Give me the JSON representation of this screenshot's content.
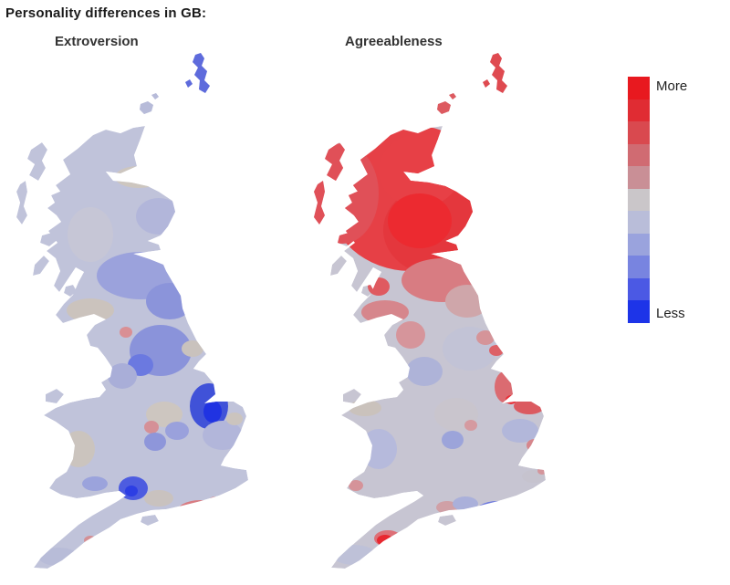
{
  "page": {
    "title": "Personality differences in GB:"
  },
  "maps": [
    {
      "id": "extroversion",
      "label": "Extroversion",
      "base_color": "#c0c3da",
      "blobs": [
        [
          215,
          28,
          20,
          28,
          "#5e6bdc"
        ],
        [
          160,
          60,
          20,
          14,
          "#b7bbd9"
        ],
        [
          148,
          142,
          26,
          12,
          "#cdc6bf"
        ],
        [
          95,
          205,
          25,
          30,
          "#c6c6d6"
        ],
        [
          170,
          185,
          25,
          20,
          "#b2b6da"
        ],
        [
          150,
          250,
          48,
          26,
          "#9ba2dc"
        ],
        [
          95,
          288,
          26,
          13,
          "#cbc3bd"
        ],
        [
          182,
          278,
          26,
          20,
          "#8b94da"
        ],
        [
          134,
          312,
          7,
          6,
          "#d98f94"
        ],
        [
          172,
          332,
          34,
          28,
          "#8a93da"
        ],
        [
          150,
          348,
          14,
          12,
          "#6b79e0"
        ],
        [
          207,
          330,
          12,
          9,
          "#c9c2bd"
        ],
        [
          130,
          360,
          16,
          14,
          "#a9aed8"
        ],
        [
          225,
          393,
          21,
          25,
          "#4052d8"
        ],
        [
          229,
          399,
          10,
          12,
          "#2033e2"
        ],
        [
          240,
          425,
          22,
          16,
          "#b2b6da"
        ],
        [
          253,
          407,
          9,
          7,
          "#cbc4be"
        ],
        [
          176,
          402,
          20,
          14,
          "#cdc6c0"
        ],
        [
          190,
          420,
          13,
          10,
          "#9aa1dc"
        ],
        [
          162,
          416,
          8,
          7,
          "#d59097"
        ],
        [
          166,
          432,
          12,
          10,
          "#8e96da"
        ],
        [
          82,
          440,
          18,
          20,
          "#cbc4be"
        ],
        [
          100,
          478,
          14,
          8,
          "#9ba3dc"
        ],
        [
          142,
          483,
          16,
          13,
          "#4d5ce0"
        ],
        [
          140,
          486,
          7,
          6,
          "#2c3ee4"
        ],
        [
          170,
          494,
          16,
          9,
          "#c9c2bf"
        ],
        [
          215,
          510,
          26,
          14,
          "#d97b81"
        ],
        [
          217,
          508,
          13,
          8,
          "#e63940"
        ],
        [
          210,
          514,
          5,
          4,
          "#ee1c24"
        ],
        [
          232,
          498,
          8,
          6,
          "#d58f95"
        ],
        [
          200,
          520,
          7,
          5,
          "#d2868c"
        ],
        [
          95,
          540,
          7,
          5,
          "#d49096"
        ],
        [
          60,
          558,
          22,
          10,
          "#b8bcd8"
        ]
      ]
    },
    {
      "id": "agreeableness",
      "label": "Agreeableness",
      "base_color": "#c7c5d2",
      "blobs": [
        [
          215,
          28,
          20,
          28,
          "#df4a50"
        ],
        [
          160,
          60,
          20,
          14,
          "#dd5a60"
        ],
        [
          120,
          165,
          90,
          80,
          "#e64046"
        ],
        [
          45,
          160,
          40,
          55,
          "#e05058"
        ],
        [
          150,
          200,
          60,
          50,
          "#e4373d"
        ],
        [
          130,
          135,
          45,
          40,
          "#e74046"
        ],
        [
          130,
          190,
          35,
          30,
          "#ec2a30"
        ],
        [
          155,
          255,
          45,
          24,
          "#d87c82"
        ],
        [
          92,
          290,
          26,
          13,
          "#d6868c"
        ],
        [
          85,
          262,
          12,
          10,
          "#df5a60"
        ],
        [
          182,
          278,
          24,
          18,
          "#cfa6aa"
        ],
        [
          120,
          315,
          16,
          15,
          "#d6959b"
        ],
        [
          185,
          330,
          30,
          24,
          "#c2c3d6"
        ],
        [
          202,
          318,
          10,
          8,
          "#d59499"
        ],
        [
          214,
          332,
          8,
          6,
          "#dd6167"
        ],
        [
          135,
          355,
          20,
          16,
          "#aeb3d8"
        ],
        [
          225,
          372,
          13,
          18,
          "#db6b71"
        ],
        [
          230,
          386,
          6,
          5,
          "#e83038"
        ],
        [
          70,
          395,
          18,
          9,
          "#cac2bc"
        ],
        [
          85,
          440,
          20,
          22,
          "#b6badc"
        ],
        [
          60,
          480,
          8,
          6,
          "#d59399"
        ],
        [
          170,
          402,
          24,
          18,
          "#c9c5cd"
        ],
        [
          166,
          430,
          12,
          10,
          "#9ca4da"
        ],
        [
          186,
          414,
          7,
          6,
          "#d59aa0"
        ],
        [
          250,
          393,
          17,
          9,
          "#db5a60"
        ],
        [
          240,
          420,
          20,
          13,
          "#b2b7da"
        ],
        [
          256,
          436,
          9,
          7,
          "#d6868c"
        ],
        [
          215,
          512,
          26,
          15,
          "#6a77de"
        ],
        [
          212,
          508,
          13,
          9,
          "#2438e2"
        ],
        [
          198,
          516,
          6,
          5,
          "#4d5ce0"
        ],
        [
          160,
          504,
          12,
          7,
          "#d0a0a6"
        ],
        [
          180,
          500,
          14,
          8,
          "#aab0da"
        ],
        [
          255,
          470,
          13,
          7,
          "#c6c3ce"
        ],
        [
          264,
          464,
          5,
          4,
          "#d4959b"
        ],
        [
          95,
          538,
          15,
          9,
          "#dd7077"
        ],
        [
          92,
          540,
          9,
          6,
          "#e82830"
        ],
        [
          58,
          556,
          24,
          11,
          "#bec1d8"
        ]
      ]
    }
  ],
  "legend": {
    "more_label": "More",
    "less_label": "Less",
    "colors": [
      "#e8191f",
      "#e02c33",
      "#d9494f",
      "#d06b72",
      "#c98f96",
      "#cac6c9",
      "#b9bdd9",
      "#9aa3dd",
      "#7884e0",
      "#4b59e4",
      "#1d34e8"
    ]
  },
  "chart_data": {
    "type": "choropleth",
    "title": "Personality differences in GB:",
    "variables": [
      "Extroversion",
      "Agreeableness"
    ],
    "scale": {
      "high_label": "More",
      "low_label": "Less",
      "high_color": "#e8191f",
      "low_color": "#1d34e8"
    }
  }
}
